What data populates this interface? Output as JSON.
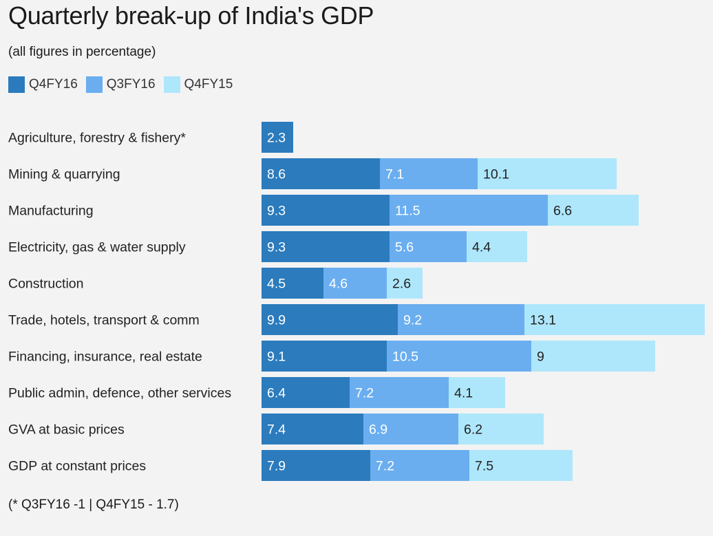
{
  "title": "Quarterly break-up of India's GDP",
  "subtitle": "(all figures in percentage)",
  "footnote": "(* Q3FY16 -1 | Q4FY15 - 1.7)",
  "colors": {
    "q4fy16": "#2b7bbd",
    "q3fy16": "#6aaef0",
    "q4fy15": "#aee7fb"
  },
  "chart_data": {
    "type": "bar",
    "orientation": "horizontal",
    "stacked": true,
    "categories": [
      "Agriculture, forestry & fishery*",
      "Mining & quarrying",
      "Manufacturing",
      "Electricity, gas & water supply",
      "Construction",
      "Trade, hotels, transport & comm",
      "Financing, insurance, real estate",
      "Public admin, defence, other services",
      "GVA at basic prices",
      "GDP at constant prices"
    ],
    "series": [
      {
        "name": "Q4FY16",
        "values": [
          2.3,
          8.6,
          9.3,
          9.3,
          4.5,
          9.9,
          9.1,
          6.4,
          7.4,
          7.9
        ],
        "labels": [
          "2.3",
          "8.6",
          "9.3",
          "9.3",
          "4.5",
          "9.9",
          "9.1",
          "6.4",
          "7.4",
          "7.9"
        ]
      },
      {
        "name": "Q3FY16",
        "values": [
          null,
          7.1,
          11.5,
          5.6,
          4.6,
          9.2,
          10.5,
          7.2,
          6.9,
          7.2
        ],
        "labels": [
          "",
          "7.1",
          "11.5",
          "5.6",
          "4.6",
          "9.2",
          "10.5",
          "7.2",
          "6.9",
          "7.2"
        ]
      },
      {
        "name": "Q4FY15",
        "values": [
          null,
          10.1,
          6.6,
          4.4,
          2.6,
          13.1,
          9,
          4.1,
          6.2,
          7.5
        ],
        "labels": [
          "",
          "10.1",
          "6.6",
          "4.4",
          "2.6",
          "13.1",
          "9",
          "4.1",
          "6.2",
          "7.5"
        ]
      }
    ],
    "legend_position": "top-left",
    "grid": false
  }
}
